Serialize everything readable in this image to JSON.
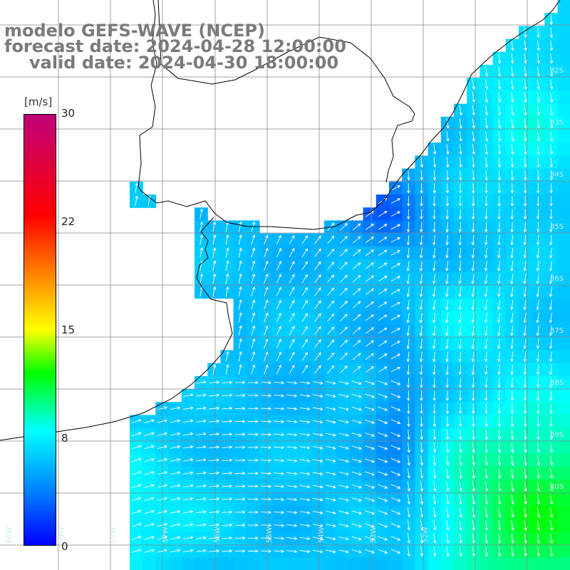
{
  "title": {
    "model": "modelo GEFS-WAVE (NCEP)",
    "forecast": "forecast date: 2024-04-28 12:00:00",
    "valid": "valid date: 2024-04-30 18:00:00"
  },
  "colorbar": {
    "unit": "[m/s]",
    "min": 0,
    "max": 30,
    "ticks": [
      "30",
      "22",
      "15",
      "8",
      "0"
    ],
    "tick_values": [
      30,
      22,
      15,
      8,
      0
    ],
    "stops": [
      {
        "value": 0,
        "color": "#0000ff"
      },
      {
        "value": 4,
        "color": "#0088ff"
      },
      {
        "value": 8,
        "color": "#00ffff"
      },
      {
        "value": 12,
        "color": "#00ff00"
      },
      {
        "value": 15,
        "color": "#ffff00"
      },
      {
        "value": 19,
        "color": "#ff8000"
      },
      {
        "value": 23,
        "color": "#ff0000"
      },
      {
        "value": 30,
        "color": "#c0007a"
      }
    ]
  },
  "map_labels": {
    "latitudes": [
      "32S",
      "33S",
      "34S",
      "35S",
      "36S",
      "37S",
      "38S",
      "39S",
      "40S"
    ],
    "longitudes": [
      "60W",
      "59W",
      "58W",
      "57W",
      "56W",
      "55W",
      "54W",
      "53W",
      "52W"
    ]
  },
  "colors": {
    "land": "#ffffff",
    "coastline": "#000000",
    "grid": "#888888",
    "vectors": "#ffffff",
    "title": "#7a7a7a"
  }
}
